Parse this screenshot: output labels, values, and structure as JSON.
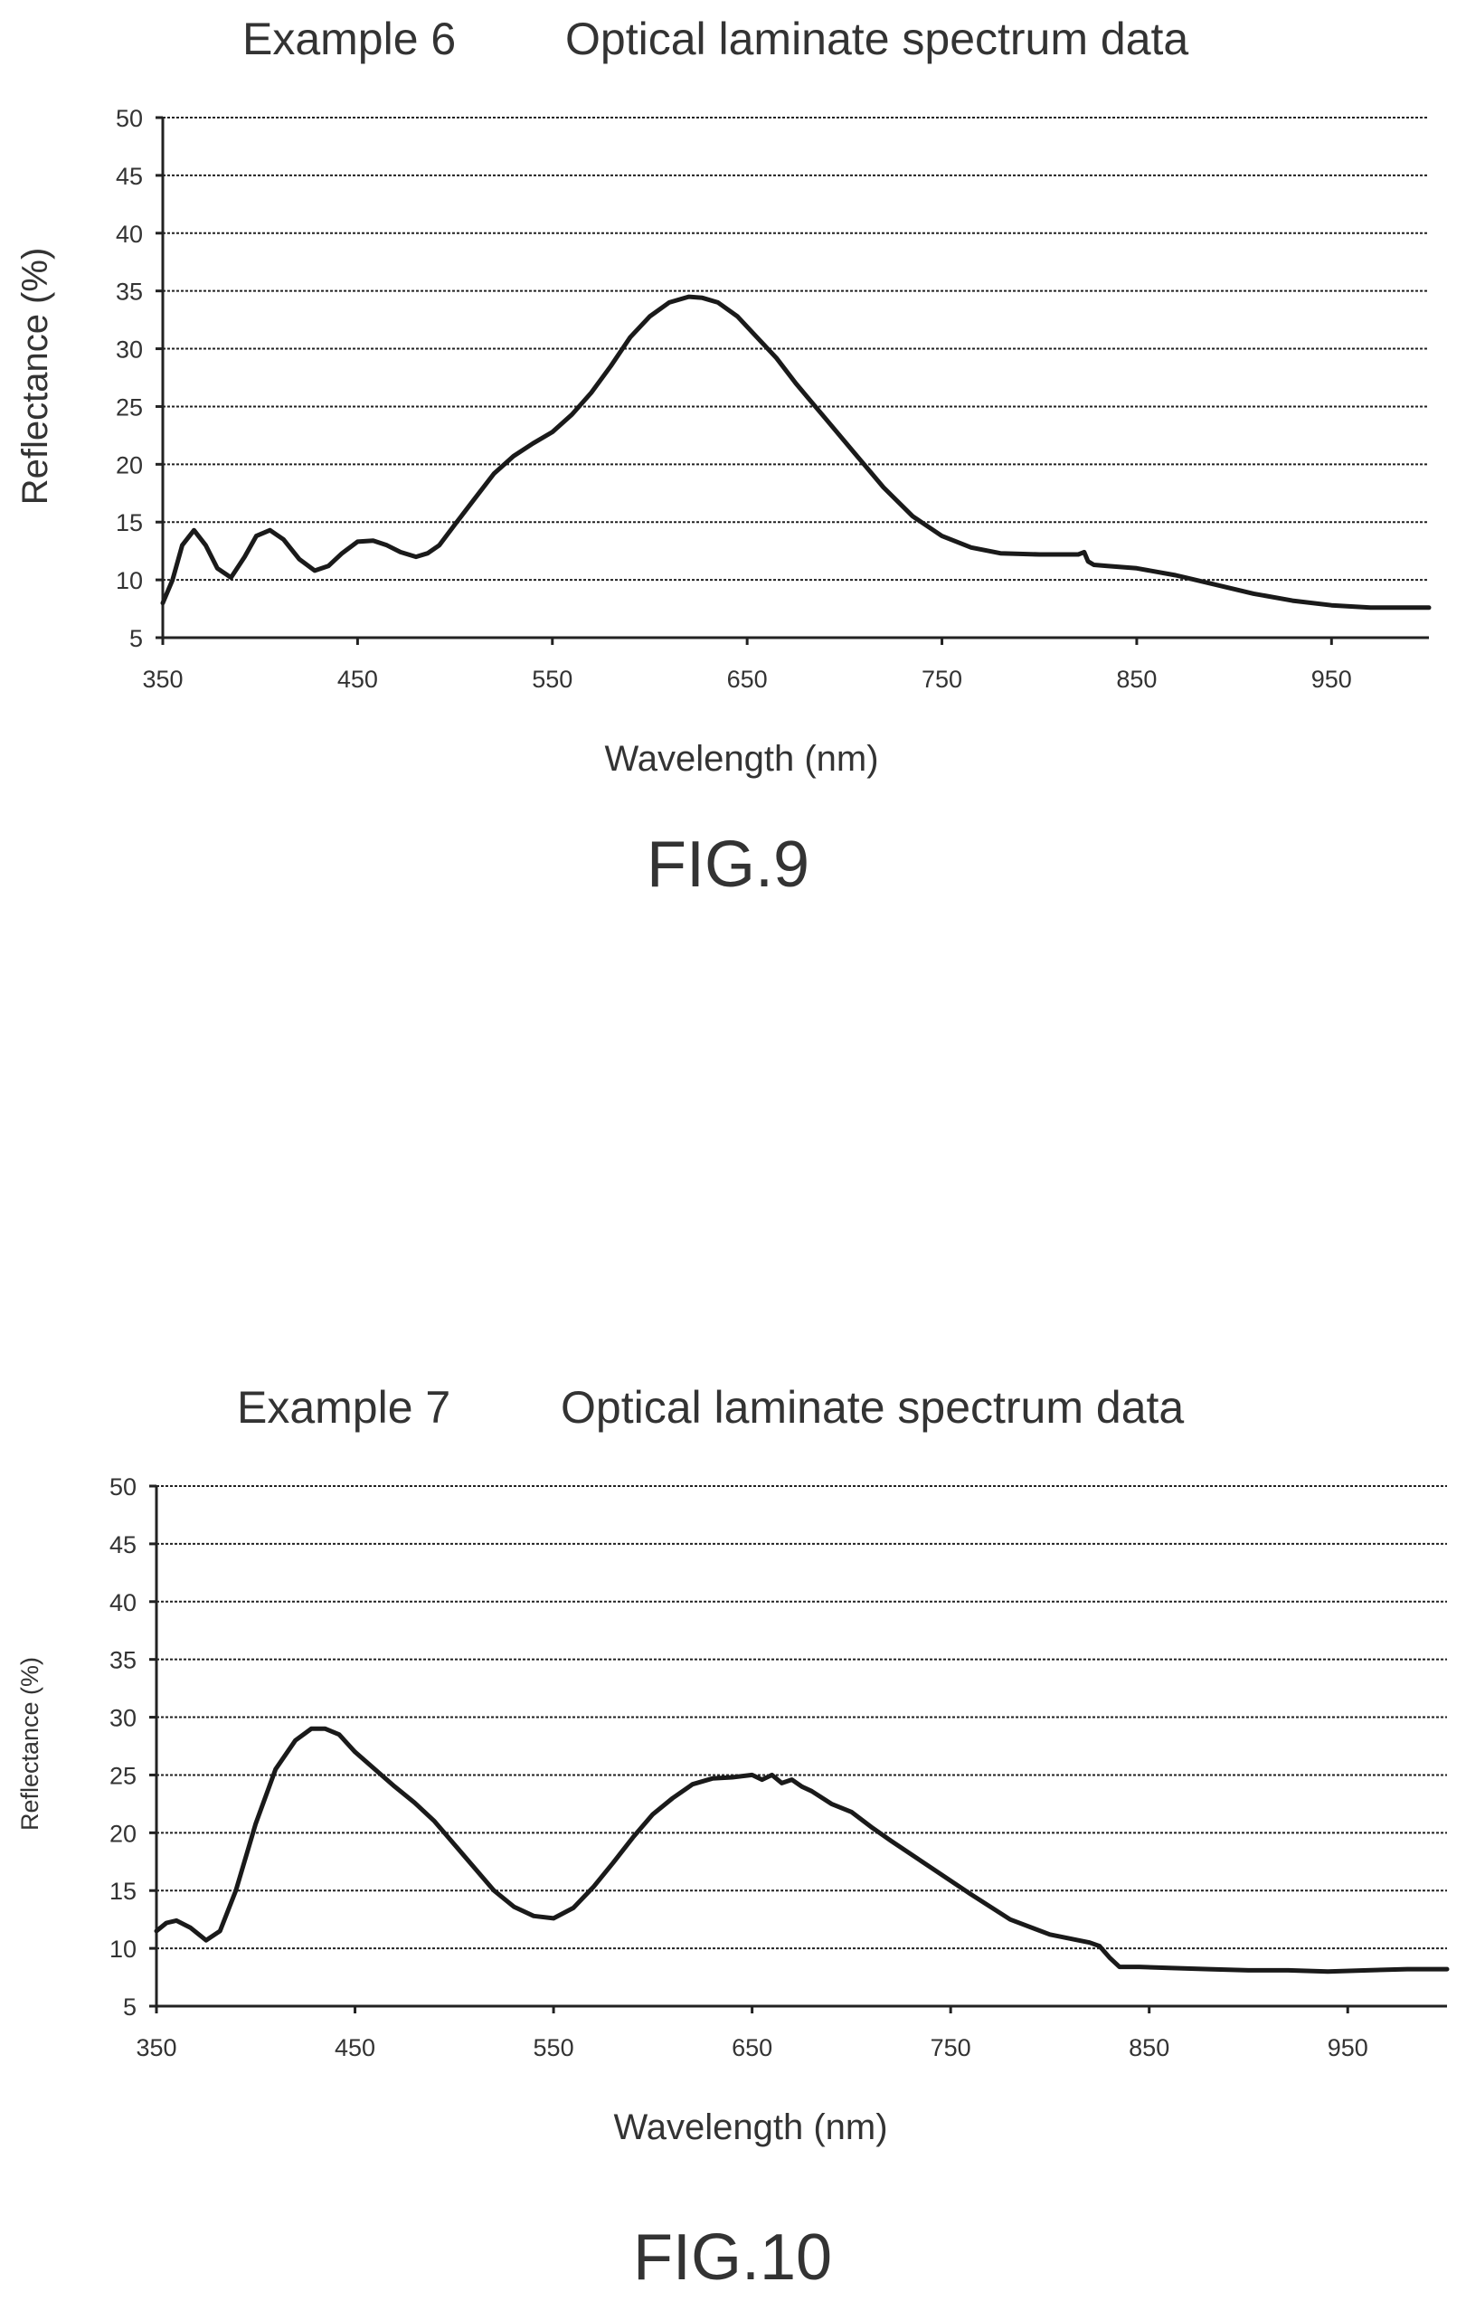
{
  "charts": [
    {
      "figure_label": "FIG.9",
      "chart_data": {
        "type": "line",
        "title_example": "Example 6",
        "title_text": "Optical laminate spectrum data",
        "xlabel": "Wavelength (nm)",
        "ylabel": "Reflectance (%)",
        "xlim": [
          350,
          1000
        ],
        "ylim": [
          5,
          50
        ],
        "xticks": [
          350,
          450,
          550,
          650,
          750,
          850,
          950
        ],
        "yticks": [
          5,
          10,
          15,
          20,
          25,
          30,
          35,
          40,
          45,
          50
        ],
        "grid": true,
        "series": [
          {
            "x": [
              350,
              355,
              360,
              366,
              372,
              378,
              385,
              392,
              398,
              405,
              412,
              420,
              428,
              435,
              442,
              450,
              458,
              465,
              472,
              480,
              486,
              492,
              500,
              510,
              520,
              530,
              540,
              550,
              560,
              570,
              580,
              590,
              600,
              610,
              620,
              627,
              635,
              645,
              655,
              665,
              675,
              690,
              705,
              720,
              735,
              750,
              765,
              780,
              800,
              820,
              823,
              825,
              828,
              835,
              850,
              870,
              890,
              910,
              930,
              950,
              970,
              985,
              1000
            ],
            "y": [
              8,
              10,
              13,
              14.3,
              13,
              11,
              10.2,
              12,
              13.8,
              14.3,
              13.5,
              11.8,
              10.8,
              11.2,
              12.3,
              13.3,
              13.4,
              13,
              12.4,
              12,
              12.3,
              13,
              14.8,
              17,
              19.2,
              20.7,
              21.8,
              22.8,
              24.3,
              26.2,
              28.5,
              31,
              32.8,
              34,
              34.5,
              34.4,
              34,
              32.8,
              31,
              29.2,
              27,
              24,
              21,
              18,
              15.5,
              13.8,
              12.8,
              12.3,
              12.2,
              12.2,
              12.4,
              11.6,
              11.3,
              11.2,
              11,
              10.4,
              9.6,
              8.8,
              8.2,
              7.8,
              7.6,
              7.6,
              7.6
            ]
          }
        ]
      }
    },
    {
      "figure_label": "FIG.10",
      "chart_data": {
        "type": "line",
        "title_example": "Example 7",
        "title_text": "Optical laminate spectrum data",
        "xlabel": "Wavelength (nm)",
        "ylabel": "Reflectance (%)",
        "xlim": [
          350,
          1000
        ],
        "ylim": [
          5,
          50
        ],
        "xticks": [
          350,
          450,
          550,
          650,
          750,
          850,
          950
        ],
        "yticks": [
          5,
          10,
          15,
          20,
          25,
          30,
          35,
          40,
          45,
          50
        ],
        "grid": true,
        "series": [
          {
            "x": [
              350,
              355,
              360,
              367,
              375,
              382,
              390,
              400,
              410,
              420,
              428,
              435,
              442,
              450,
              460,
              470,
              480,
              490,
              500,
              510,
              520,
              530,
              540,
              550,
              560,
              570,
              580,
              590,
              600,
              610,
              620,
              630,
              640,
              650,
              655,
              660,
              665,
              670,
              675,
              680,
              690,
              700,
              710,
              720,
              740,
              760,
              780,
              800,
              820,
              825,
              830,
              835,
              845,
              860,
              880,
              900,
              920,
              940,
              960,
              980,
              1000
            ],
            "y": [
              11.5,
              12.2,
              12.4,
              11.8,
              10.7,
              11.5,
              15,
              20.8,
              25.5,
              28,
              29,
              29,
              28.5,
              27,
              25.5,
              24,
              22.6,
              21,
              19,
              17,
              15,
              13.6,
              12.8,
              12.6,
              13.5,
              15.3,
              17.4,
              19.6,
              21.6,
              23,
              24.2,
              24.7,
              24.8,
              25,
              24.6,
              25,
              24.3,
              24.6,
              24,
              23.6,
              22.5,
              21.8,
              20.5,
              19.3,
              17,
              14.7,
              12.5,
              11.2,
              10.5,
              10.2,
              9.2,
              8.4,
              8.4,
              8.3,
              8.2,
              8.1,
              8.1,
              8,
              8.1,
              8.2,
              8.2
            ]
          }
        ]
      }
    }
  ]
}
